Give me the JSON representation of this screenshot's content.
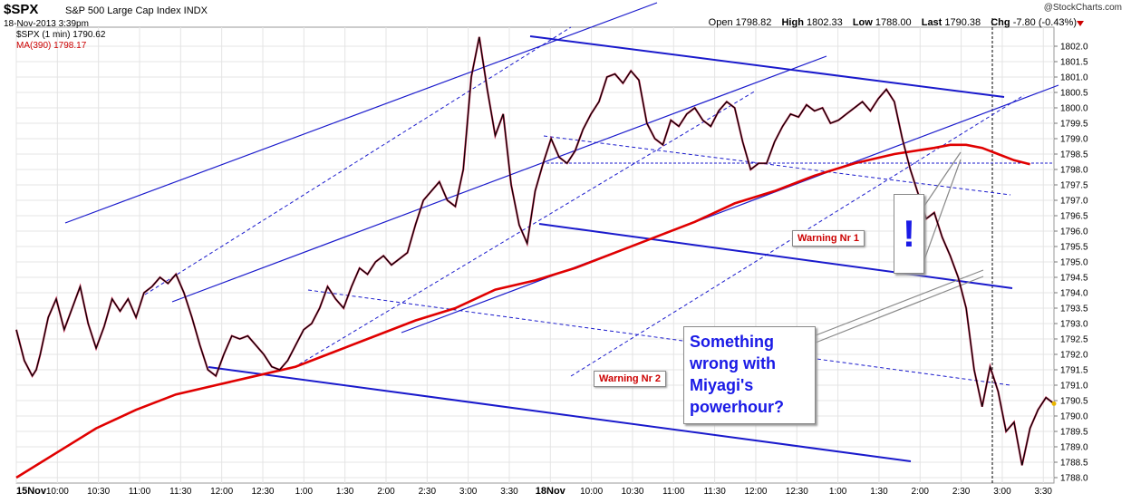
{
  "header": {
    "symbol": "$SPX",
    "subtitle": "S&P 500 Large Cap Index INDX",
    "date": "18-Nov-2013 3:39pm",
    "watermark": "@StockCharts.com",
    "open_label": "Open",
    "open": "1798.82",
    "high_label": "High",
    "high": "1802.33",
    "low_label": "Low",
    "low": "1788.00",
    "last_label": "Last",
    "last": "1790.38",
    "chg_label": "Chg",
    "chg": "-7.80 (-0.43%)"
  },
  "legend": {
    "series1": "$SPX (1 min) 1790.62",
    "series2": "MA(390) 1798.17"
  },
  "annotations": {
    "callout_lines": [
      "Something",
      "wrong with",
      "Miyagi's",
      "powerhour?"
    ],
    "warning1": "Warning Nr 1",
    "warning2": "Warning Nr 2",
    "exclamation": "!"
  },
  "colors": {
    "price": "#000000",
    "price_down": "#cc0033",
    "ma": "#e00000",
    "trendline": "#1a1acc",
    "grid": "#e4e4e4"
  },
  "chart_data": {
    "type": "line",
    "xlabel": "",
    "ylabel": "",
    "ylim": [
      1788.0,
      1802.0
    ],
    "yticks": [
      "1788.0",
      "1788.5",
      "1789.0",
      "1789.5",
      "1790.0",
      "1790.5",
      "1791.0",
      "1791.5",
      "1792.0",
      "1792.5",
      "1793.0",
      "1793.5",
      "1794.0",
      "1794.5",
      "1795.0",
      "1795.5",
      "1796.0",
      "1796.5",
      "1797.0",
      "1797.5",
      "1798.0",
      "1798.5",
      "1799.0",
      "1799.5",
      "1800.0",
      "1800.5",
      "1801.0",
      "1801.5",
      "1802.0"
    ],
    "xticks": [
      "15Nov",
      "10:00",
      "10:30",
      "11:00",
      "11:30",
      "12:00",
      "12:30",
      "1:00",
      "1:30",
      "2:00",
      "2:30",
      "3:00",
      "3:30",
      "18Nov",
      "10:00",
      "10:30",
      "11:00",
      "11:30",
      "12:00",
      "12:30",
      "1:00",
      "1:30",
      "2:00",
      "2:30",
      "3:00",
      "3:30"
    ],
    "series": [
      {
        "name": "$SPX (1 min)",
        "x": [
          0,
          2,
          4,
          5,
          6,
          8,
          10,
          12,
          14,
          16,
          18,
          20,
          22,
          24,
          26,
          28,
          30,
          32,
          34,
          36,
          38,
          40,
          42,
          44,
          46,
          48,
          50,
          52,
          54,
          56,
          58,
          60,
          62,
          64,
          66,
          68,
          70,
          72,
          74,
          76,
          78,
          80,
          82,
          84,
          86,
          88,
          90,
          92,
          94,
          96,
          98,
          100,
          102,
          104,
          106,
          108,
          110,
          112,
          114,
          116,
          118,
          120,
          122,
          124,
          126,
          128,
          130,
          132,
          134,
          136,
          138,
          140,
          142,
          144,
          146,
          148,
          150,
          152,
          154,
          156,
          158,
          160,
          162,
          164,
          166,
          168,
          170,
          172,
          174,
          176,
          178,
          180,
          182,
          184,
          186,
          188,
          190,
          192,
          194,
          196,
          198,
          200,
          202,
          204,
          206,
          208,
          210,
          212,
          214,
          216,
          218,
          220,
          222,
          224,
          226,
          228,
          230,
          232,
          234,
          236,
          238,
          240,
          242,
          244,
          246,
          248,
          250,
          252,
          254,
          256,
          258,
          260
        ],
        "values": [
          1792.8,
          1791.8,
          1791.3,
          1791.5,
          1792.0,
          1793.2,
          1793.8,
          1792.8,
          1793.5,
          1794.2,
          1793.0,
          1792.2,
          1792.9,
          1793.8,
          1793.4,
          1793.8,
          1793.2,
          1794.0,
          1794.2,
          1794.5,
          1794.3,
          1794.6,
          1794.0,
          1793.2,
          1792.3,
          1791.5,
          1791.3,
          1792.0,
          1792.6,
          1792.5,
          1792.6,
          1792.3,
          1792.0,
          1791.6,
          1791.5,
          1791.8,
          1792.3,
          1792.8,
          1793.0,
          1793.5,
          1794.2,
          1793.8,
          1793.5,
          1794.2,
          1794.8,
          1794.6,
          1795.0,
          1795.2,
          1794.9,
          1795.1,
          1795.3,
          1796.2,
          1797.0,
          1797.3,
          1797.6,
          1797.0,
          1796.8,
          1798.0,
          1801.0,
          1802.3,
          1800.6,
          1799.1,
          1799.8,
          1797.5,
          1796.2,
          1795.6,
          1797.3,
          1798.2,
          1799.0,
          1798.4,
          1798.2,
          1798.6,
          1799.3,
          1799.8,
          1800.2,
          1801.0,
          1801.1,
          1800.8,
          1801.2,
          1800.9,
          1799.5,
          1799.0,
          1798.8,
          1799.6,
          1799.4,
          1799.8,
          1800.0,
          1799.6,
          1799.4,
          1799.9,
          1800.2,
          1800.0,
          1798.9,
          1798.0,
          1798.2,
          1798.2,
          1798.9,
          1799.4,
          1799.8,
          1799.7,
          1800.1,
          1799.9,
          1800.0,
          1799.5,
          1799.6,
          1799.8,
          1800.0,
          1800.2,
          1799.9,
          1800.3,
          1800.6,
          1800.2,
          1799.0,
          1798.0,
          1797.2,
          1796.4,
          1796.6,
          1795.8,
          1795.2,
          1794.5,
          1793.5,
          1791.5,
          1790.3,
          1791.6,
          1790.8,
          1789.5,
          1789.8,
          1788.4,
          1789.6,
          1790.2,
          1790.6,
          1790.4
        ]
      },
      {
        "name": "MA(390)",
        "x": [
          0,
          10,
          20,
          30,
          40,
          50,
          60,
          70,
          80,
          90,
          100,
          110,
          120,
          130,
          140,
          150,
          160,
          170,
          180,
          190,
          200,
          210,
          220,
          230,
          234,
          238,
          242,
          246,
          250,
          254
        ],
        "values": [
          1788.0,
          1788.8,
          1789.6,
          1790.2,
          1790.7,
          1791.0,
          1791.3,
          1791.6,
          1792.1,
          1792.6,
          1793.1,
          1793.5,
          1794.1,
          1794.4,
          1794.8,
          1795.3,
          1795.8,
          1796.3,
          1796.9,
          1797.3,
          1797.8,
          1798.2,
          1798.5,
          1798.7,
          1798.8,
          1798.8,
          1798.7,
          1798.5,
          1798.3,
          1798.17
        ]
      }
    ]
  }
}
